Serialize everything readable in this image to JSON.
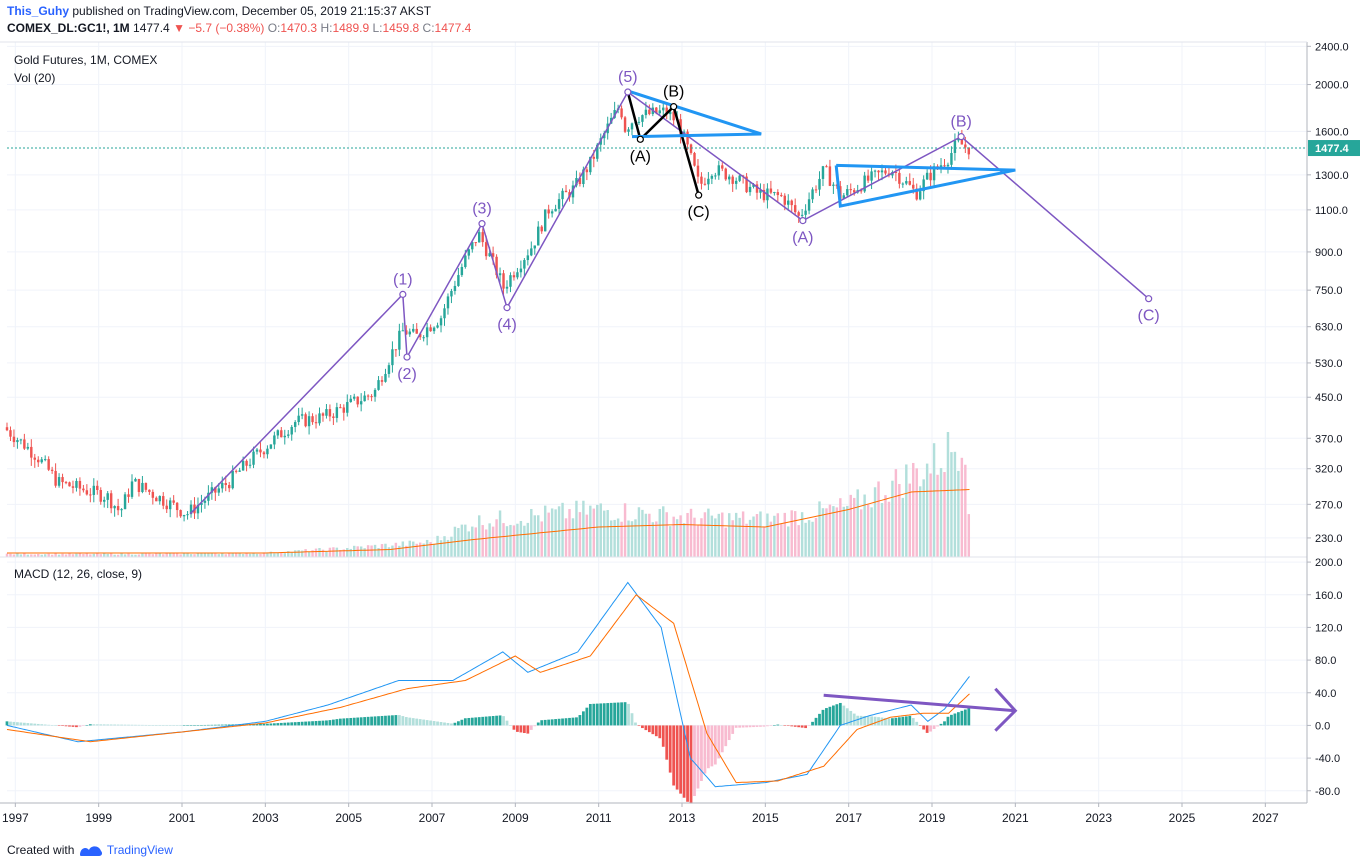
{
  "header": {
    "author": "This_Guhy",
    "published": "published on TradingView.com, December 05, 2019 21:15:37 AKST",
    "symbol": "COMEX_DL:GC1!, 1M",
    "last": "1477.4",
    "change_arrow": "▼",
    "change": "−5.7 (−0.38%)",
    "o_label": "O:",
    "o": "1470.3",
    "h_label": "H:",
    "h": "1489.9",
    "l_label": "L:",
    "l": "1459.8",
    "c_label": "C:",
    "c": "1477.4"
  },
  "panes": {
    "price_title": "Gold Futures, 1M, COMEX",
    "vol_title": "Vol (20)",
    "macd_title": "MACD (12, 26, close, 9)"
  },
  "footer": {
    "created_with": "Created with",
    "brand": "TradingView",
    "logo_icon": "tradingview-logo-icon"
  },
  "colors": {
    "up": "#26a69a",
    "down": "#ef5350",
    "up_vol": "#b2dfdb",
    "down_vol": "#f8bbd0",
    "wave": "#7e57c2",
    "triangle": "#2196f3",
    "black_wave": "#000000",
    "macd_line": "#2196f3",
    "signal_line": "#ff6d00",
    "vol_ma": "#ff6d00",
    "last_price_bg": "#26a69a",
    "grid": "#f0f3fa"
  },
  "chart_data": [
    {
      "type": "candlestick",
      "title": "Gold Futures, 1M, COMEX",
      "y_scale": "log",
      "ylim": [
        210,
        2450
      ],
      "xlim": [
        1996.8,
        2028.0
      ],
      "y_ticks": [
        2400,
        2000,
        1600,
        1300,
        1100,
        900,
        750,
        630,
        530,
        450,
        370,
        320,
        270,
        230
      ],
      "x_ticks": [
        "1997",
        "1999",
        "2001",
        "2003",
        "2005",
        "2007",
        "2009",
        "2011",
        "2013",
        "2015",
        "2017",
        "2019",
        "2021",
        "2023",
        "2025",
        "2027"
      ],
      "last_price": 1477.4,
      "path_anchors": [
        [
          1996.8,
          390
        ],
        [
          1997.6,
          340
        ],
        [
          1998.1,
          300
        ],
        [
          1999.3,
          280
        ],
        [
          1999.6,
          260
        ],
        [
          1999.9,
          300
        ],
        [
          2000.5,
          280
        ],
        [
          2001.2,
          258
        ],
        [
          2002.2,
          300
        ],
        [
          2003.0,
          350
        ],
        [
          2003.8,
          400
        ],
        [
          2004.5,
          410
        ],
        [
          2005.0,
          430
        ],
        [
          2005.7,
          460
        ],
        [
          2006.4,
          620
        ],
        [
          2006.7,
          600
        ],
        [
          2007.3,
          660
        ],
        [
          2008.2,
          980
        ],
        [
          2008.8,
          760
        ],
        [
          2009.5,
          930
        ],
        [
          2009.9,
          1110
        ],
        [
          2010.5,
          1220
        ],
        [
          2010.9,
          1380
        ],
        [
          2011.6,
          1820
        ],
        [
          2011.7,
          1620
        ],
        [
          2012.0,
          1720
        ],
        [
          2012.7,
          1760
        ],
        [
          2013.0,
          1660
        ],
        [
          2013.5,
          1230
        ],
        [
          2013.8,
          1340
        ],
        [
          2014.3,
          1290
        ],
        [
          2014.9,
          1190
        ],
        [
          2015.5,
          1170
        ],
        [
          2015.9,
          1060
        ],
        [
          2016.5,
          1330
        ],
        [
          2016.9,
          1170
        ],
        [
          2017.5,
          1260
        ],
        [
          2018.1,
          1340
        ],
        [
          2018.7,
          1190
        ],
        [
          2019.0,
          1290
        ],
        [
          2019.5,
          1420
        ],
        [
          2019.7,
          1520
        ],
        [
          2019.93,
          1477.4
        ]
      ],
      "annotations": {
        "impulse_wave": [
          {
            "label": "(1)",
            "x": 2006.3,
            "y": 735
          },
          {
            "label": "(2)",
            "x": 2006.4,
            "y": 545
          },
          {
            "label": "(3)",
            "x": 2008.2,
            "y": 1030
          },
          {
            "label": "(4)",
            "x": 2008.8,
            "y": 690
          },
          {
            "label": "(5)",
            "x": 2011.7,
            "y": 1930
          }
        ],
        "correction_2011_2013": [
          {
            "label": "(A)",
            "x": 2012.0,
            "y": 1540
          },
          {
            "label": "(B)",
            "x": 2012.8,
            "y": 1800
          },
          {
            "label": "(C)",
            "x": 2013.4,
            "y": 1180
          }
        ],
        "correction_2011_2024": [
          {
            "label": "(A)",
            "x": 2015.9,
            "y": 1045
          },
          {
            "label": "(B)",
            "x": 2019.7,
            "y": 1560
          },
          {
            "label": "(C)",
            "x": 2024.2,
            "y": 720
          }
        ],
        "wave_line_from": {
          "x": 2001.2,
          "y": 258
        }
      }
    },
    {
      "type": "bar",
      "title": "Vol (20)",
      "series": [
        {
          "name": "Vol",
          "anchors": [
            [
              1996.8,
              6
            ],
            [
              2000,
              6
            ],
            [
              2003,
              8
            ],
            [
              2005,
              18
            ],
            [
              2007,
              30
            ],
            [
              2008,
              70
            ],
            [
              2011,
              95
            ],
            [
              2013,
              80
            ],
            [
              2015,
              75
            ],
            [
              2016,
              85
            ],
            [
              2017,
              100
            ],
            [
              2019,
              185
            ],
            [
              2019.8,
              240
            ],
            [
              2019.93,
              40
            ]
          ]
        }
      ],
      "ma_anchors": [
        [
          1996.8,
          8
        ],
        [
          2003,
          8
        ],
        [
          2006,
          15
        ],
        [
          2008,
          35
        ],
        [
          2011,
          60
        ],
        [
          2013,
          65
        ],
        [
          2015,
          60
        ],
        [
          2017,
          95
        ],
        [
          2018.5,
          130
        ],
        [
          2019.9,
          135
        ]
      ]
    },
    {
      "type": "line",
      "title": "MACD (12, 26, close, 9)",
      "ylim": [
        -95,
        205
      ],
      "y_ticks": [
        200.0,
        160.0,
        120.0,
        80.0,
        40.0,
        0.0,
        -40.0,
        -80.0
      ],
      "series": [
        {
          "name": "MACD",
          "anchors": [
            [
              1996.8,
              0
            ],
            [
              1998.5,
              -20
            ],
            [
              2001,
              -8
            ],
            [
              2003,
              5
            ],
            [
              2004.5,
              25
            ],
            [
              2006.2,
              55
            ],
            [
              2007.5,
              55
            ],
            [
              2008.7,
              90
            ],
            [
              2009.3,
              65
            ],
            [
              2010.5,
              90
            ],
            [
              2011.7,
              175
            ],
            [
              2012.5,
              120
            ],
            [
              2013.2,
              -40
            ],
            [
              2013.8,
              -75
            ],
            [
              2015,
              -70
            ],
            [
              2016,
              -60
            ],
            [
              2016.8,
              0
            ],
            [
              2017.5,
              12
            ],
            [
              2018.5,
              25
            ],
            [
              2018.9,
              5
            ],
            [
              2019.3,
              20
            ],
            [
              2019.9,
              60
            ]
          ]
        },
        {
          "name": "Signal",
          "anchors": [
            [
              1996.8,
              -5
            ],
            [
              1998.8,
              -20
            ],
            [
              2001,
              -8
            ],
            [
              2003,
              3
            ],
            [
              2004.8,
              22
            ],
            [
              2006.4,
              45
            ],
            [
              2007.8,
              55
            ],
            [
              2009.0,
              85
            ],
            [
              2009.6,
              65
            ],
            [
              2010.8,
              85
            ],
            [
              2011.9,
              160
            ],
            [
              2012.8,
              125
            ],
            [
              2013.6,
              -10
            ],
            [
              2014.3,
              -70
            ],
            [
              2015.3,
              -68
            ],
            [
              2016.4,
              -50
            ],
            [
              2017.2,
              -5
            ],
            [
              2018,
              10
            ],
            [
              2018.8,
              15
            ],
            [
              2019.4,
              15
            ],
            [
              2019.93,
              40
            ]
          ]
        }
      ],
      "trend_arrow": {
        "from": {
          "x": 2016.4,
          "y": 37
        },
        "to": {
          "x": 2021.0,
          "y": 18
        }
      }
    }
  ]
}
